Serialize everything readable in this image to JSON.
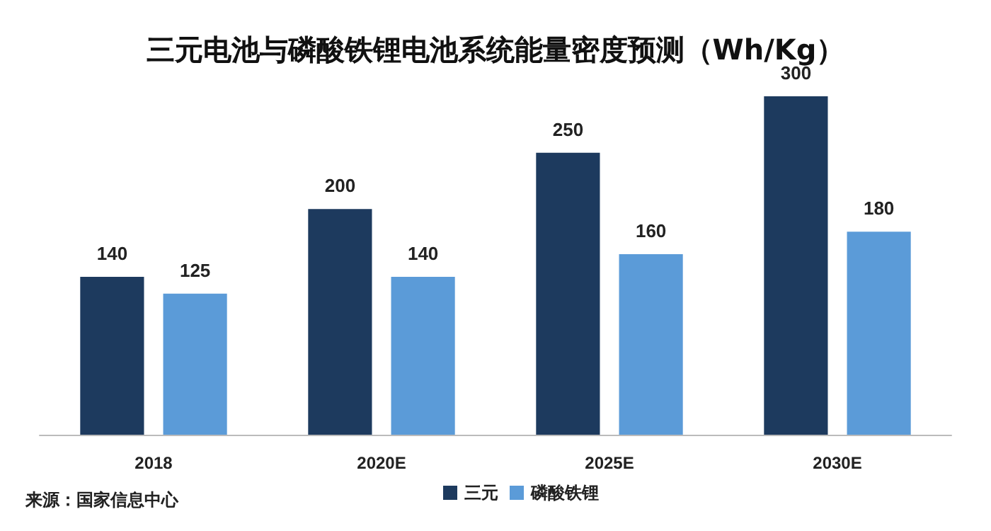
{
  "chart_data": {
    "type": "bar",
    "title": "三元电池与磷酸铁锂电池系统能量密度预测（Wh/Kg）",
    "categories": [
      "2018",
      "2020E",
      "2025E",
      "2030E"
    ],
    "series": [
      {
        "name": "三元",
        "color": "#1d3a5e",
        "values": [
          140,
          200,
          250,
          300
        ]
      },
      {
        "name": "磷酸铁锂",
        "color": "#5b9bd8",
        "values": [
          125,
          140,
          160,
          180
        ]
      }
    ],
    "data_labels": true,
    "tick_labels": "x",
    "grid": false,
    "legend": "bottom",
    "annotations": [
      "来源：国家信息中心"
    ]
  }
}
